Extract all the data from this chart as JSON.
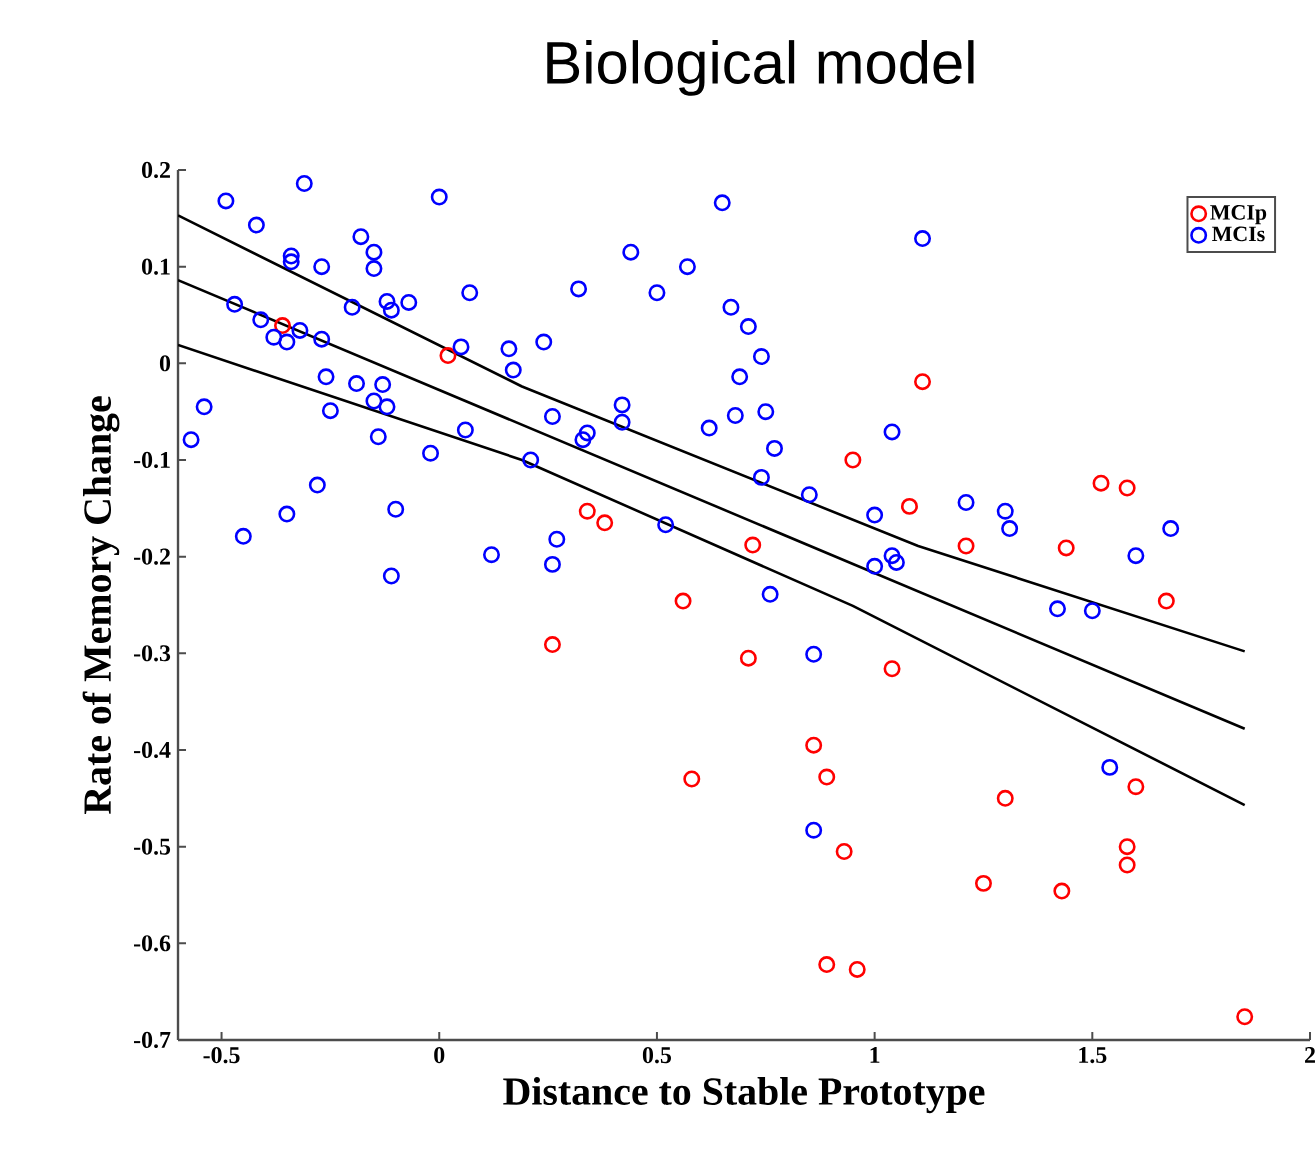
{
  "chart_data": {
    "type": "scatter",
    "title": "Biological model",
    "xlabel": "Distance to Stable Prototype",
    "ylabel": "Rate of Memory Change",
    "xlim": [
      -0.6,
      2
    ],
    "xticks": [
      -0.5,
      0,
      0.5,
      1,
      1.5,
      2
    ],
    "ylim": [
      -0.7,
      0.2
    ],
    "yticks": [
      -0.7,
      -0.6,
      -0.5,
      -0.4,
      -0.3,
      -0.2,
      -0.1,
      0,
      0.1,
      0.2
    ],
    "legend": "top right",
    "marker": "circle",
    "series": [
      {
        "name": "MCIp",
        "color": "#ff0000",
        "x": [
          -0.36,
          0.02,
          1.11,
          0.95,
          1.08,
          0.34,
          0.38,
          0.72,
          0.56,
          1.52,
          1.58,
          1.21,
          1.44,
          1.67,
          0.26,
          0.58,
          0.71,
          1.04,
          0.86,
          0.89,
          1.6,
          1.3,
          0.93,
          1.58,
          1.58,
          1.25,
          1.43,
          0.89,
          0.96,
          1.85
        ],
        "values": [
          0.039,
          0.008,
          -0.019,
          -0.1,
          -0.148,
          -0.153,
          -0.165,
          -0.188,
          -0.246,
          -0.124,
          -0.129,
          -0.189,
          -0.191,
          -0.246,
          -0.291,
          -0.43,
          -0.305,
          -0.316,
          -0.395,
          -0.428,
          -0.438,
          -0.45,
          -0.505,
          -0.5,
          -0.519,
          -0.538,
          -0.546,
          -0.622,
          -0.627,
          -0.676
        ]
      },
      {
        "name": "MCIs",
        "color": "#0000ff",
        "x": [
          -0.49,
          -0.31,
          -0.42,
          0.0,
          -0.34,
          -0.34,
          -0.27,
          -0.18,
          -0.15,
          -0.15,
          0.07,
          -0.47,
          -0.2,
          -0.12,
          -0.11,
          -0.07,
          -0.41,
          -0.38,
          -0.35,
          -0.32,
          -0.27,
          0.05,
          0.16,
          0.17,
          0.24,
          -0.26,
          -0.19,
          -0.13,
          -0.54,
          -0.15,
          -0.12,
          -0.25,
          -0.57,
          -0.14,
          0.06,
          -0.02,
          0.26,
          0.21,
          -0.28,
          -0.35,
          -0.1,
          -0.45,
          0.12,
          0.27,
          0.26,
          -0.11,
          0.65,
          1.11,
          0.44,
          0.57,
          0.32,
          0.5,
          0.67,
          0.71,
          0.74,
          0.69,
          0.42,
          0.42,
          0.34,
          0.33,
          0.68,
          0.75,
          0.62,
          0.77,
          1.04,
          0.74,
          0.85,
          1.0,
          0.52,
          1.04,
          1.0,
          1.05,
          0.76,
          1.21,
          1.3,
          1.31,
          1.68,
          1.6,
          1.42,
          1.5,
          0.86,
          1.54,
          0.86
        ],
        "values": [
          0.168,
          0.186,
          0.143,
          0.172,
          0.111,
          0.105,
          0.1,
          0.131,
          0.115,
          0.098,
          0.073,
          0.061,
          0.058,
          0.064,
          0.055,
          0.063,
          0.045,
          0.027,
          0.022,
          0.034,
          0.025,
          0.017,
          0.015,
          -0.007,
          0.022,
          -0.014,
          -0.021,
          -0.022,
          -0.045,
          -0.039,
          -0.045,
          -0.049,
          -0.079,
          -0.076,
          -0.069,
          -0.093,
          -0.055,
          -0.1,
          -0.126,
          -0.156,
          -0.151,
          -0.179,
          -0.198,
          -0.182,
          -0.208,
          -0.22,
          0.166,
          0.129,
          0.115,
          0.1,
          0.077,
          0.073,
          0.058,
          0.038,
          0.007,
          -0.014,
          -0.043,
          -0.061,
          -0.072,
          -0.079,
          -0.054,
          -0.05,
          -0.067,
          -0.088,
          -0.071,
          -0.118,
          -0.136,
          -0.157,
          -0.167,
          -0.199,
          -0.21,
          -0.206,
          -0.239,
          -0.144,
          -0.153,
          -0.171,
          -0.171,
          -0.199,
          -0.254,
          -0.256,
          -0.301,
          -0.418,
          -0.483
        ]
      },
      {
        "type": "line",
        "marker": "none",
        "color": "#000000",
        "x": [
          -0.6,
          0.19,
          1.1,
          1.85
        ],
        "values": [
          0.153,
          -0.024,
          -0.189,
          -0.298
        ]
      },
      {
        "type": "line",
        "marker": "none",
        "color": "#000000",
        "x": [
          -0.6,
          1.85
        ],
        "values": [
          0.086,
          -0.378
        ]
      },
      {
        "type": "line",
        "marker": "none",
        "color": "#000000",
        "x": [
          -0.6,
          0.19,
          0.95,
          1.85
        ],
        "values": [
          0.019,
          -0.1,
          -0.251,
          -0.457
        ]
      }
    ]
  }
}
